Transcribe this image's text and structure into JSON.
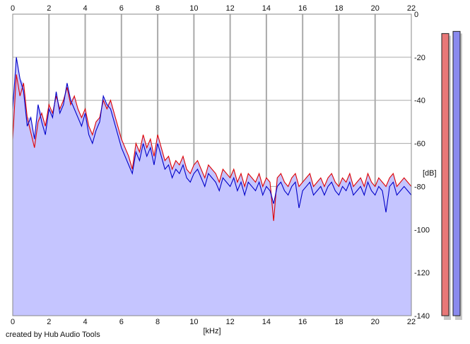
{
  "credit_text": "created by Hub Audio Tools",
  "colors": {
    "fill": "#c5c5ff",
    "left_channel": "#e00000",
    "right_channel": "#0000c8",
    "grid": "#aaaaaa",
    "meter_left": "#e87878",
    "meter_right": "#8a8aee"
  },
  "chart_data": {
    "type": "line",
    "xlabel": "[kHz]",
    "ylabel": "[dB]",
    "xlim": [
      0,
      22
    ],
    "ylim": [
      -140,
      0
    ],
    "x_ticks": [
      0,
      2,
      4,
      6,
      8,
      10,
      12,
      14,
      16,
      18,
      20,
      22
    ],
    "y_ticks": [
      0,
      -20,
      -40,
      -60,
      -80,
      -100,
      -120,
      -140
    ],
    "grid": true,
    "x": [
      0,
      0.2,
      0.4,
      0.6,
      0.8,
      1.0,
      1.2,
      1.4,
      1.6,
      1.8,
      2.0,
      2.2,
      2.4,
      2.6,
      2.8,
      3.0,
      3.2,
      3.4,
      3.6,
      3.8,
      4.0,
      4.2,
      4.4,
      4.6,
      4.8,
      5.0,
      5.2,
      5.4,
      5.6,
      5.8,
      6.0,
      6.2,
      6.4,
      6.6,
      6.8,
      7.0,
      7.2,
      7.4,
      7.6,
      7.8,
      8.0,
      8.2,
      8.4,
      8.6,
      8.8,
      9.0,
      9.2,
      9.4,
      9.6,
      9.8,
      10.0,
      10.2,
      10.4,
      10.6,
      10.8,
      11.0,
      11.2,
      11.4,
      11.6,
      11.8,
      12.0,
      12.2,
      12.4,
      12.6,
      12.8,
      13.0,
      13.2,
      13.4,
      13.6,
      13.8,
      14.0,
      14.2,
      14.4,
      14.6,
      14.8,
      15.0,
      15.2,
      15.4,
      15.6,
      15.8,
      16.0,
      16.2,
      16.4,
      16.6,
      16.8,
      17.0,
      17.2,
      17.4,
      17.6,
      17.8,
      18.0,
      18.2,
      18.4,
      18.6,
      18.8,
      19.0,
      19.2,
      19.4,
      19.6,
      19.8,
      20.0,
      20.2,
      20.4,
      20.6,
      20.8,
      21.0,
      21.2,
      21.4,
      21.6,
      21.8,
      22.0
    ],
    "series": [
      {
        "channel": "left",
        "color": "#e00000",
        "values": [
          -58,
          -28,
          -38,
          -32,
          -48,
          -55,
          -62,
          -50,
          -46,
          -52,
          -42,
          -46,
          -38,
          -44,
          -40,
          -34,
          -42,
          -38,
          -44,
          -48,
          -44,
          -52,
          -56,
          -50,
          -48,
          -40,
          -44,
          -40,
          -46,
          -52,
          -58,
          -62,
          -66,
          -72,
          -60,
          -64,
          -56,
          -62,
          -58,
          -66,
          -56,
          -62,
          -68,
          -66,
          -72,
          -68,
          -70,
          -66,
          -72,
          -74,
          -70,
          -68,
          -72,
          -76,
          -70,
          -72,
          -74,
          -78,
          -72,
          -74,
          -76,
          -72,
          -78,
          -74,
          -80,
          -74,
          -76,
          -78,
          -74,
          -80,
          -76,
          -78,
          -96,
          -76,
          -74,
          -78,
          -80,
          -76,
          -74,
          -80,
          -78,
          -76,
          -74,
          -80,
          -78,
          -76,
          -80,
          -76,
          -74,
          -78,
          -80,
          -76,
          -78,
          -74,
          -80,
          -78,
          -76,
          -80,
          -74,
          -78,
          -80,
          -76,
          -78,
          -80,
          -76,
          -74,
          -80,
          -78,
          -76,
          -78,
          -80
        ]
      },
      {
        "channel": "right",
        "color": "#0000c8",
        "values": [
          -44,
          -20,
          -30,
          -36,
          -52,
          -48,
          -58,
          -42,
          -50,
          -56,
          -44,
          -48,
          -36,
          -46,
          -42,
          -32,
          -40,
          -44,
          -48,
          -52,
          -46,
          -56,
          -60,
          -54,
          -50,
          -38,
          -42,
          -44,
          -50,
          -56,
          -62,
          -66,
          -70,
          -74,
          -64,
          -68,
          -60,
          -66,
          -62,
          -70,
          -60,
          -66,
          -72,
          -70,
          -76,
          -72,
          -74,
          -70,
          -76,
          -78,
          -74,
          -72,
          -76,
          -80,
          -74,
          -76,
          -78,
          -82,
          -76,
          -78,
          -80,
          -76,
          -82,
          -78,
          -84,
          -78,
          -80,
          -82,
          -78,
          -84,
          -80,
          -82,
          -88,
          -80,
          -78,
          -82,
          -84,
          -80,
          -78,
          -90,
          -82,
          -80,
          -78,
          -84,
          -82,
          -80,
          -84,
          -80,
          -78,
          -82,
          -84,
          -80,
          -82,
          -78,
          -84,
          -82,
          -80,
          -84,
          -78,
          -82,
          -84,
          -80,
          -82,
          -92,
          -80,
          -78,
          -84,
          -82,
          -80,
          -82,
          -84
        ]
      }
    ]
  },
  "meters": {
    "left_level_db": -9,
    "right_level_db": -8
  }
}
